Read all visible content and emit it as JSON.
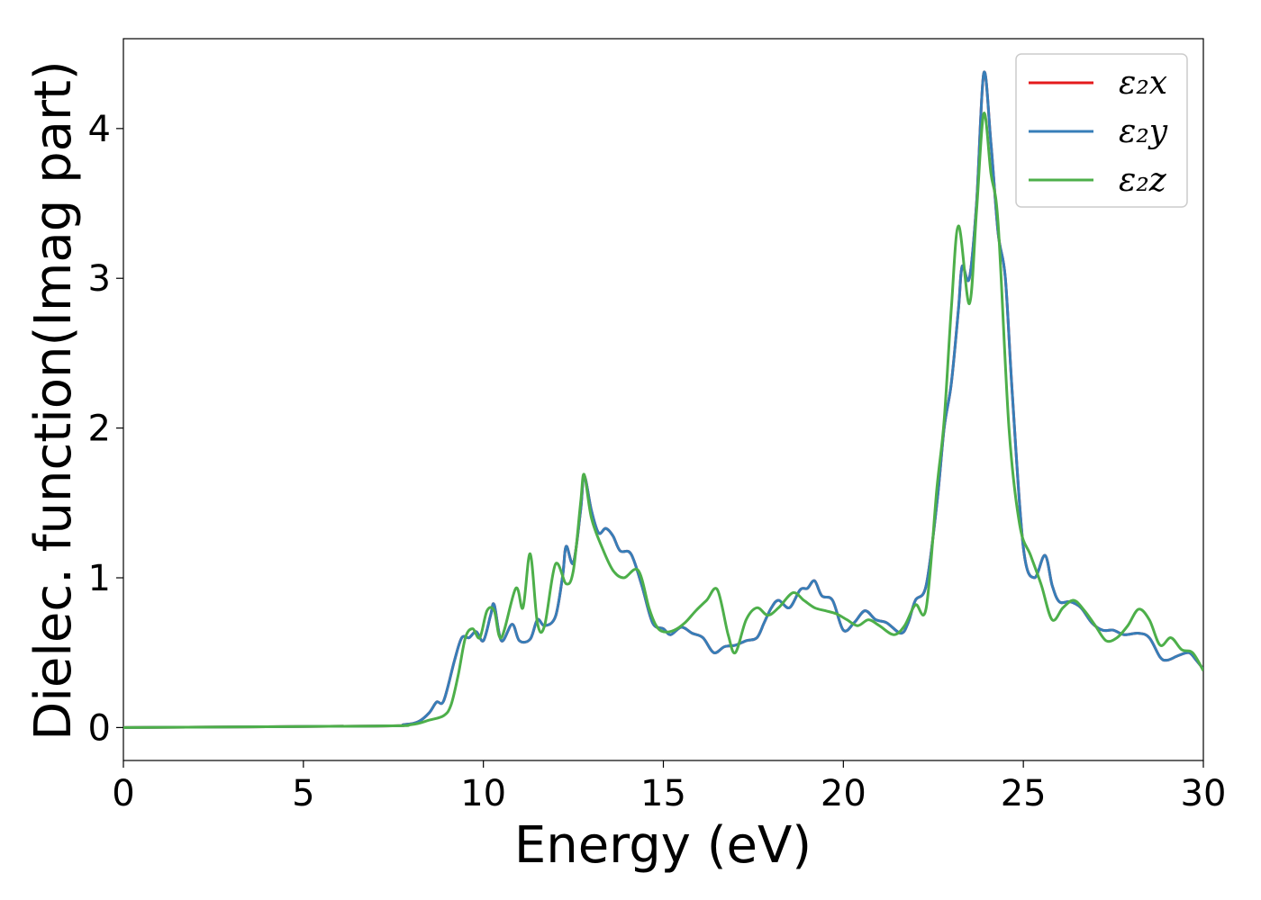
{
  "chart_data": {
    "type": "line",
    "xlabel": "Energy (eV)",
    "ylabel": "Dielec. function(Imag part)",
    "xlim": [
      0,
      30
    ],
    "ylim": [
      -0.22,
      4.6
    ],
    "xticks": [
      0,
      5,
      10,
      15,
      20,
      25,
      30
    ],
    "xtick_labels": [
      "0",
      "5",
      "10",
      "15",
      "20",
      "25",
      "30"
    ],
    "yticks": [
      0,
      1,
      2,
      3,
      4
    ],
    "ytick_labels": [
      "0",
      "1",
      "2",
      "3",
      "4"
    ],
    "grid": false,
    "legend": {
      "position": "top-right",
      "entries": [
        "ε₂x",
        "ε₂y",
        "ε₂z"
      ]
    },
    "series": [
      {
        "name": "ε₂x",
        "color": "#e41a1c",
        "points": [
          [
            0,
            0
          ],
          [
            7,
            0.01
          ],
          [
            7.8,
            0.02
          ],
          [
            8.2,
            0.04
          ],
          [
            8.5,
            0.1
          ],
          [
            8.7,
            0.17
          ],
          [
            8.9,
            0.18
          ],
          [
            9.2,
            0.45
          ],
          [
            9.4,
            0.6
          ],
          [
            9.6,
            0.6
          ],
          [
            9.8,
            0.64
          ],
          [
            10.0,
            0.58
          ],
          [
            10.2,
            0.75
          ],
          [
            10.3,
            0.82
          ],
          [
            10.5,
            0.58
          ],
          [
            10.8,
            0.69
          ],
          [
            11.0,
            0.58
          ],
          [
            11.3,
            0.59
          ],
          [
            11.5,
            0.72
          ],
          [
            11.7,
            0.68
          ],
          [
            12.0,
            0.74
          ],
          [
            12.2,
            1.01
          ],
          [
            12.3,
            1.21
          ],
          [
            12.5,
            1.1
          ],
          [
            12.7,
            1.45
          ],
          [
            12.8,
            1.68
          ],
          [
            13.0,
            1.45
          ],
          [
            13.2,
            1.3
          ],
          [
            13.4,
            1.33
          ],
          [
            13.6,
            1.28
          ],
          [
            13.8,
            1.18
          ],
          [
            14.1,
            1.16
          ],
          [
            14.4,
            0.95
          ],
          [
            14.7,
            0.7
          ],
          [
            15.0,
            0.66
          ],
          [
            15.2,
            0.62
          ],
          [
            15.5,
            0.67
          ],
          [
            15.8,
            0.63
          ],
          [
            16.1,
            0.6
          ],
          [
            16.4,
            0.5
          ],
          [
            16.7,
            0.54
          ],
          [
            17.0,
            0.55
          ],
          [
            17.3,
            0.58
          ],
          [
            17.6,
            0.6
          ],
          [
            17.8,
            0.7
          ],
          [
            18.0,
            0.8
          ],
          [
            18.2,
            0.85
          ],
          [
            18.5,
            0.8
          ],
          [
            18.8,
            0.92
          ],
          [
            19.0,
            0.93
          ],
          [
            19.2,
            0.98
          ],
          [
            19.4,
            0.88
          ],
          [
            19.7,
            0.85
          ],
          [
            20.0,
            0.65
          ],
          [
            20.3,
            0.7
          ],
          [
            20.6,
            0.78
          ],
          [
            20.9,
            0.72
          ],
          [
            21.2,
            0.7
          ],
          [
            21.6,
            0.63
          ],
          [
            21.8,
            0.7
          ],
          [
            22.0,
            0.85
          ],
          [
            22.3,
            0.95
          ],
          [
            22.6,
            1.5
          ],
          [
            22.8,
            2.0
          ],
          [
            23.0,
            2.3
          ],
          [
            23.2,
            2.8
          ],
          [
            23.3,
            3.08
          ],
          [
            23.5,
            3.0
          ],
          [
            23.7,
            3.5
          ],
          [
            23.9,
            4.37
          ],
          [
            24.1,
            3.9
          ],
          [
            24.3,
            3.3
          ],
          [
            24.5,
            3.0
          ],
          [
            24.7,
            2.2
          ],
          [
            25.0,
            1.2
          ],
          [
            25.3,
            1.0
          ],
          [
            25.6,
            1.15
          ],
          [
            25.8,
            0.95
          ],
          [
            26.0,
            0.84
          ],
          [
            26.3,
            0.84
          ],
          [
            26.6,
            0.8
          ],
          [
            26.9,
            0.7
          ],
          [
            27.2,
            0.65
          ],
          [
            27.5,
            0.65
          ],
          [
            27.8,
            0.62
          ],
          [
            28.2,
            0.63
          ],
          [
            28.5,
            0.6
          ],
          [
            28.8,
            0.47
          ],
          [
            29.0,
            0.45
          ],
          [
            29.3,
            0.48
          ],
          [
            29.6,
            0.5
          ],
          [
            29.8,
            0.45
          ],
          [
            30,
            0.39
          ]
        ]
      },
      {
        "name": "ε₂y",
        "color": "#377eb8",
        "points": [
          [
            0,
            0
          ],
          [
            7,
            0.01
          ],
          [
            7.8,
            0.02
          ],
          [
            8.2,
            0.04
          ],
          [
            8.5,
            0.1
          ],
          [
            8.7,
            0.17
          ],
          [
            8.9,
            0.18
          ],
          [
            9.2,
            0.45
          ],
          [
            9.4,
            0.6
          ],
          [
            9.6,
            0.6
          ],
          [
            9.8,
            0.64
          ],
          [
            10.0,
            0.58
          ],
          [
            10.2,
            0.75
          ],
          [
            10.3,
            0.82
          ],
          [
            10.5,
            0.58
          ],
          [
            10.8,
            0.69
          ],
          [
            11.0,
            0.58
          ],
          [
            11.3,
            0.59
          ],
          [
            11.5,
            0.72
          ],
          [
            11.7,
            0.68
          ],
          [
            12.0,
            0.74
          ],
          [
            12.2,
            1.01
          ],
          [
            12.3,
            1.21
          ],
          [
            12.5,
            1.1
          ],
          [
            12.7,
            1.45
          ],
          [
            12.8,
            1.68
          ],
          [
            13.0,
            1.45
          ],
          [
            13.2,
            1.3
          ],
          [
            13.4,
            1.33
          ],
          [
            13.6,
            1.28
          ],
          [
            13.8,
            1.18
          ],
          [
            14.1,
            1.16
          ],
          [
            14.4,
            0.95
          ],
          [
            14.7,
            0.7
          ],
          [
            15.0,
            0.66
          ],
          [
            15.2,
            0.62
          ],
          [
            15.5,
            0.67
          ],
          [
            15.8,
            0.63
          ],
          [
            16.1,
            0.6
          ],
          [
            16.4,
            0.5
          ],
          [
            16.7,
            0.54
          ],
          [
            17.0,
            0.55
          ],
          [
            17.3,
            0.58
          ],
          [
            17.6,
            0.6
          ],
          [
            17.8,
            0.7
          ],
          [
            18.0,
            0.8
          ],
          [
            18.2,
            0.85
          ],
          [
            18.5,
            0.8
          ],
          [
            18.8,
            0.92
          ],
          [
            19.0,
            0.93
          ],
          [
            19.2,
            0.98
          ],
          [
            19.4,
            0.88
          ],
          [
            19.7,
            0.85
          ],
          [
            20.0,
            0.65
          ],
          [
            20.3,
            0.7
          ],
          [
            20.6,
            0.78
          ],
          [
            20.9,
            0.72
          ],
          [
            21.2,
            0.7
          ],
          [
            21.6,
            0.63
          ],
          [
            21.8,
            0.7
          ],
          [
            22.0,
            0.85
          ],
          [
            22.3,
            0.95
          ],
          [
            22.6,
            1.5
          ],
          [
            22.8,
            2.0
          ],
          [
            23.0,
            2.3
          ],
          [
            23.2,
            2.8
          ],
          [
            23.3,
            3.08
          ],
          [
            23.5,
            3.0
          ],
          [
            23.7,
            3.5
          ],
          [
            23.9,
            4.37
          ],
          [
            24.1,
            3.9
          ],
          [
            24.3,
            3.3
          ],
          [
            24.5,
            3.0
          ],
          [
            24.7,
            2.2
          ],
          [
            25.0,
            1.2
          ],
          [
            25.3,
            1.0
          ],
          [
            25.6,
            1.15
          ],
          [
            25.8,
            0.95
          ],
          [
            26.0,
            0.84
          ],
          [
            26.3,
            0.84
          ],
          [
            26.6,
            0.8
          ],
          [
            26.9,
            0.7
          ],
          [
            27.2,
            0.65
          ],
          [
            27.5,
            0.65
          ],
          [
            27.8,
            0.62
          ],
          [
            28.2,
            0.63
          ],
          [
            28.5,
            0.6
          ],
          [
            28.8,
            0.47
          ],
          [
            29.0,
            0.45
          ],
          [
            29.3,
            0.48
          ],
          [
            29.6,
            0.5
          ],
          [
            29.8,
            0.45
          ],
          [
            30,
            0.39
          ]
        ]
      },
      {
        "name": "ε₂z",
        "color": "#4daf4a",
        "points": [
          [
            0,
            0
          ],
          [
            7,
            0.01
          ],
          [
            8.0,
            0.02
          ],
          [
            8.5,
            0.05
          ],
          [
            8.9,
            0.08
          ],
          [
            9.1,
            0.15
          ],
          [
            9.3,
            0.35
          ],
          [
            9.5,
            0.6
          ],
          [
            9.7,
            0.66
          ],
          [
            9.9,
            0.6
          ],
          [
            10.1,
            0.78
          ],
          [
            10.3,
            0.78
          ],
          [
            10.5,
            0.6
          ],
          [
            10.9,
            0.93
          ],
          [
            11.1,
            0.8
          ],
          [
            11.3,
            1.16
          ],
          [
            11.5,
            0.7
          ],
          [
            11.7,
            0.68
          ],
          [
            12.0,
            1.09
          ],
          [
            12.3,
            0.96
          ],
          [
            12.5,
            1.05
          ],
          [
            12.7,
            1.5
          ],
          [
            12.8,
            1.69
          ],
          [
            13.0,
            1.4
          ],
          [
            13.3,
            1.2
          ],
          [
            13.6,
            1.05
          ],
          [
            13.9,
            1.0
          ],
          [
            14.3,
            1.05
          ],
          [
            14.6,
            0.8
          ],
          [
            14.8,
            0.68
          ],
          [
            15.0,
            0.64
          ],
          [
            15.3,
            0.65
          ],
          [
            15.6,
            0.7
          ],
          [
            15.9,
            0.78
          ],
          [
            16.2,
            0.85
          ],
          [
            16.5,
            0.92
          ],
          [
            16.8,
            0.62
          ],
          [
            17.0,
            0.5
          ],
          [
            17.3,
            0.72
          ],
          [
            17.6,
            0.8
          ],
          [
            17.9,
            0.75
          ],
          [
            18.2,
            0.8
          ],
          [
            18.6,
            0.9
          ],
          [
            18.9,
            0.85
          ],
          [
            19.2,
            0.8
          ],
          [
            19.5,
            0.78
          ],
          [
            19.8,
            0.76
          ],
          [
            20.1,
            0.72
          ],
          [
            20.4,
            0.68
          ],
          [
            20.7,
            0.72
          ],
          [
            21.0,
            0.68
          ],
          [
            21.4,
            0.62
          ],
          [
            21.7,
            0.68
          ],
          [
            22.0,
            0.82
          ],
          [
            22.3,
            0.8
          ],
          [
            22.6,
            1.6
          ],
          [
            22.8,
            2.05
          ],
          [
            23.0,
            2.8
          ],
          [
            23.2,
            3.35
          ],
          [
            23.5,
            2.83
          ],
          [
            23.7,
            3.45
          ],
          [
            23.9,
            4.1
          ],
          [
            24.1,
            3.7
          ],
          [
            24.3,
            3.36
          ],
          [
            24.6,
            2.0
          ],
          [
            24.9,
            1.35
          ],
          [
            25.2,
            1.15
          ],
          [
            25.5,
            0.95
          ],
          [
            25.8,
            0.72
          ],
          [
            26.1,
            0.8
          ],
          [
            26.4,
            0.85
          ],
          [
            26.7,
            0.78
          ],
          [
            27.0,
            0.68
          ],
          [
            27.3,
            0.58
          ],
          [
            27.6,
            0.6
          ],
          [
            27.9,
            0.68
          ],
          [
            28.2,
            0.79
          ],
          [
            28.5,
            0.72
          ],
          [
            28.8,
            0.55
          ],
          [
            29.1,
            0.6
          ],
          [
            29.4,
            0.52
          ],
          [
            29.7,
            0.5
          ],
          [
            30,
            0.38
          ]
        ]
      }
    ]
  }
}
